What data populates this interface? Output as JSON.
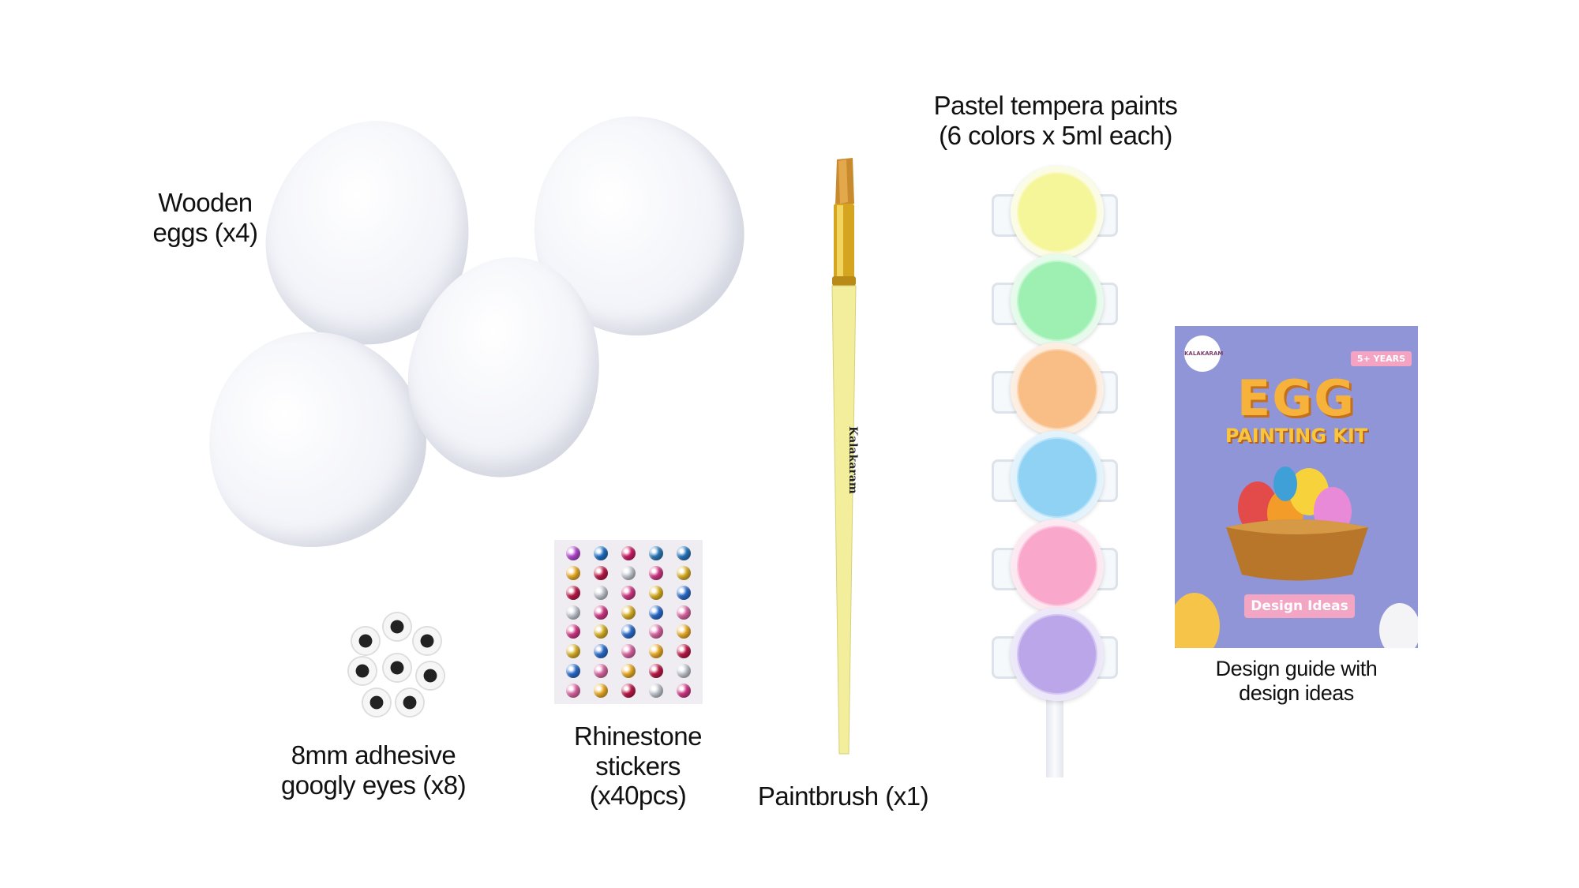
{
  "items": {
    "wooden_eggs": {
      "line1": "Wooden",
      "line2": "eggs (x4)"
    },
    "paints": {
      "line1": "Pastel tempera paints",
      "line2": "(6 colors x 5ml each)",
      "colors": [
        "#f5f69a",
        "#9ef0b2",
        "#f8be86",
        "#8fd2f4",
        "#f9a8cb",
        "#bca6ea"
      ]
    },
    "booklet": {
      "line1": "Design guide with",
      "line2": "design ideas"
    },
    "googly_eyes": {
      "line1": "8mm adhesive",
      "line2": "googly eyes (x8)"
    },
    "rhinestones": {
      "line1": "Rhinestone",
      "line2": "stickers",
      "line3": "(x40pcs)",
      "colors": [
        "#b84bd6",
        "#1f73c9",
        "#d21f6c",
        "#2e7fbf",
        "#2a79c2"
      ]
    },
    "paintbrush": {
      "label": "Paintbrush (x1)",
      "brand": "Kalakaram"
    }
  },
  "booklet_cover": {
    "title1": "EGG",
    "title2": "PAINTING KIT",
    "tag": "Design Ideas",
    "badge": "5+ YEARS",
    "logo": "KALAKARAM"
  }
}
